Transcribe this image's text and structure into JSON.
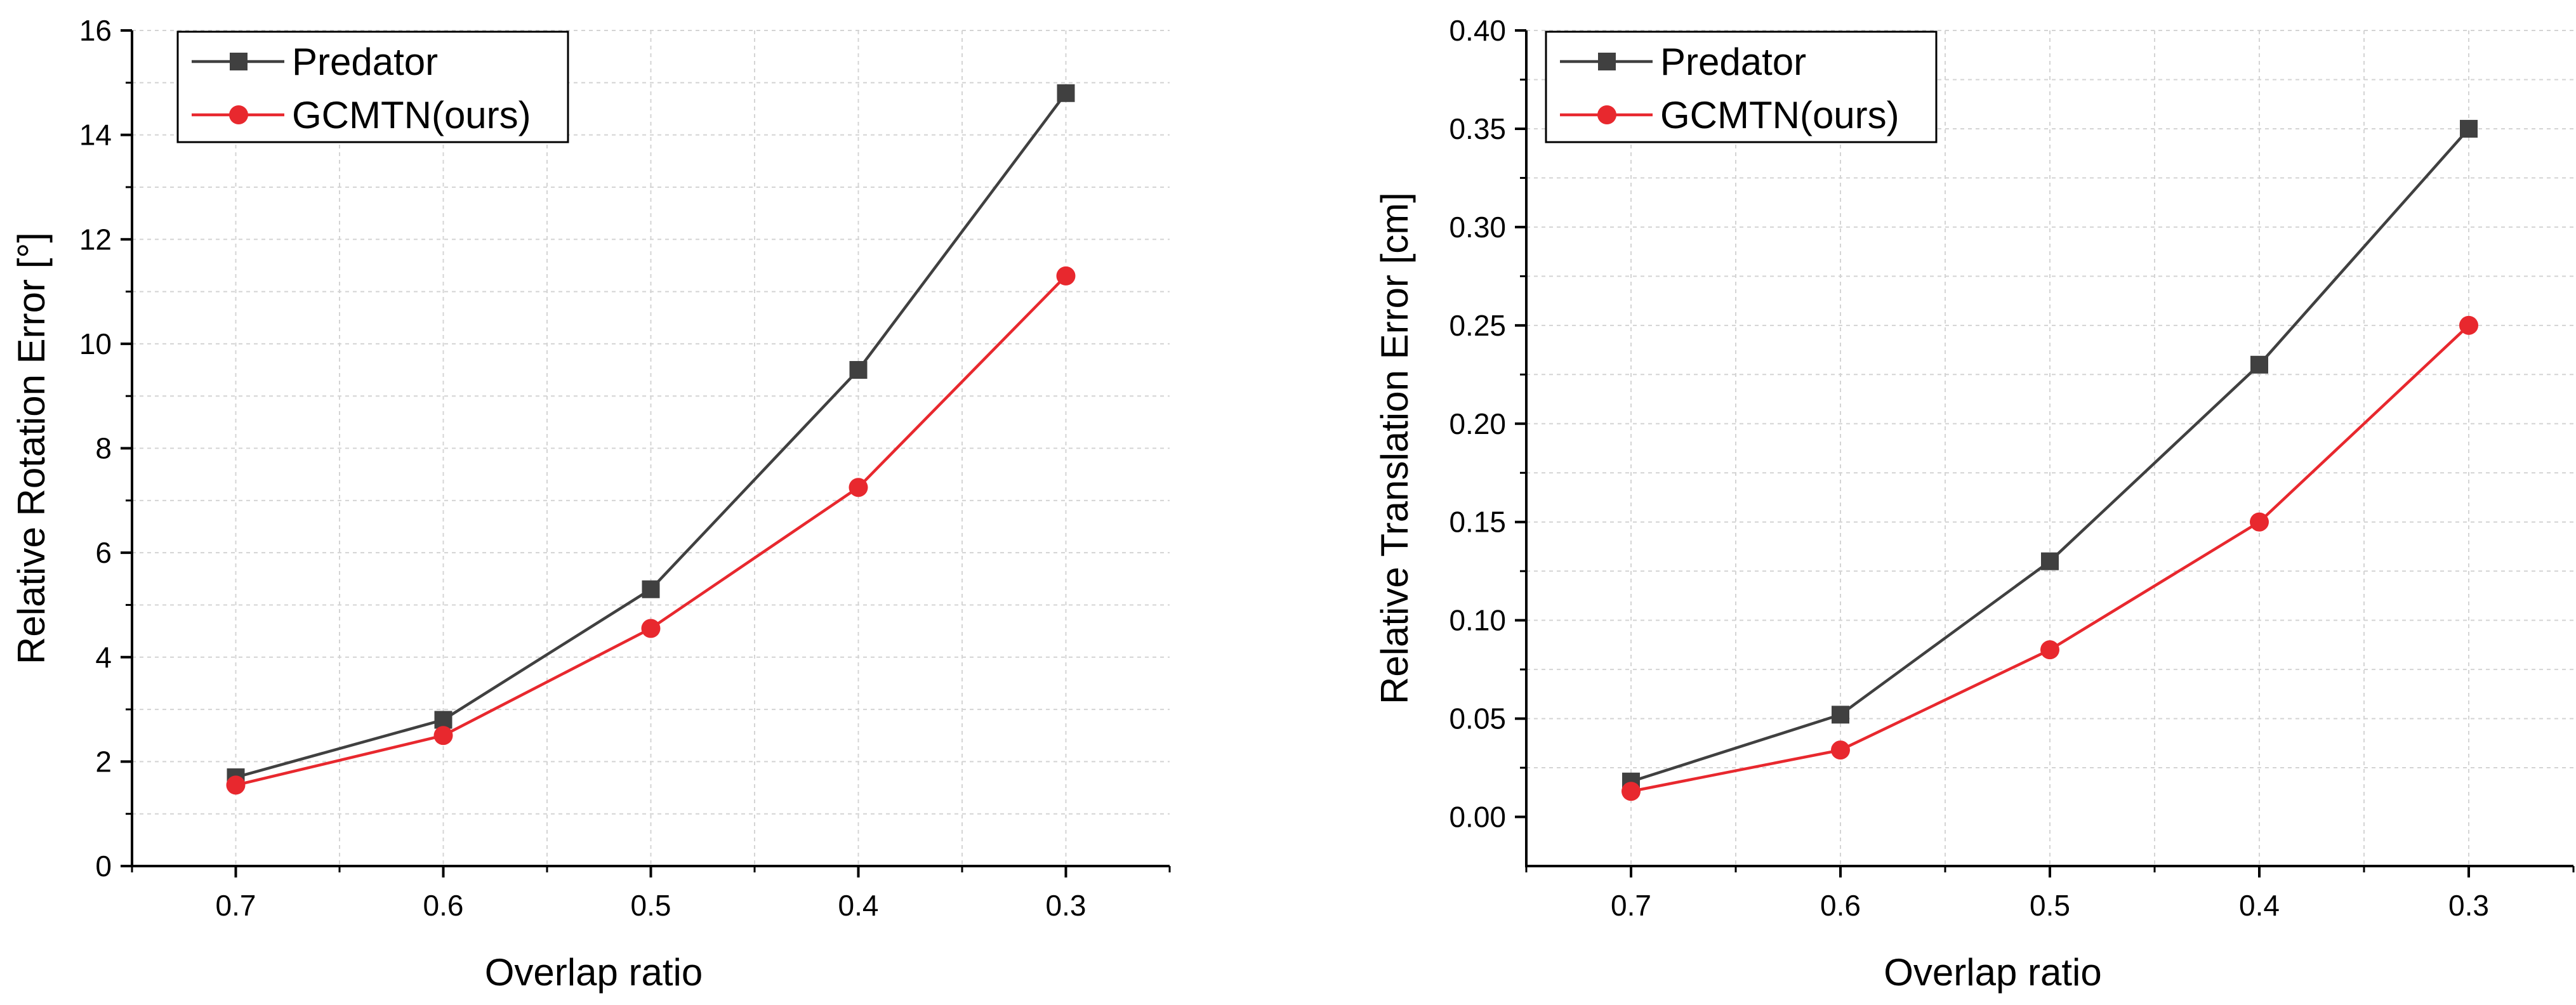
{
  "chart_data": [
    {
      "type": "line",
      "title": "",
      "xlabel": "Overlap ratio",
      "ylabel": "Relative Rotation Error [°]",
      "categories": [
        "0.7",
        "0.6",
        "0.5",
        "0.4",
        "0.3"
      ],
      "xlim": [
        0.75,
        0.25
      ],
      "ylim": [
        0,
        16
      ],
      "yticks": [
        "0",
        "2",
        "4",
        "6",
        "8",
        "10",
        "12",
        "14",
        "16"
      ],
      "grid": true,
      "legend_position": "top-left",
      "series": [
        {
          "name": "Predator",
          "color": "#404040",
          "marker": "square",
          "values": [
            1.7,
            2.8,
            5.3,
            9.5,
            14.8
          ]
        },
        {
          "name": "GCMTN(ours)",
          "color": "#e8282e",
          "marker": "circle",
          "values": [
            1.55,
            2.5,
            4.55,
            7.25,
            11.3
          ]
        }
      ]
    },
    {
      "type": "line",
      "title": "",
      "xlabel": "Overlap ratio",
      "ylabel": "Relative Translation Error [cm]",
      "categories": [
        "0.7",
        "0.6",
        "0.5",
        "0.4",
        "0.3"
      ],
      "xlim": [
        0.75,
        0.25
      ],
      "ylim": [
        -0.025,
        0.4
      ],
      "yticks": [
        "0.00",
        "0.05",
        "0.10",
        "0.15",
        "0.20",
        "0.25",
        "0.30",
        "0.35",
        "0.40"
      ],
      "grid": true,
      "legend_position": "top-left",
      "series": [
        {
          "name": "Predator",
          "color": "#404040",
          "marker": "square",
          "values": [
            0.018,
            0.052,
            0.13,
            0.23,
            0.35
          ]
        },
        {
          "name": "GCMTN(ours)",
          "color": "#e8282e",
          "marker": "circle",
          "values": [
            0.013,
            0.034,
            0.085,
            0.15,
            0.25
          ]
        }
      ]
    }
  ]
}
